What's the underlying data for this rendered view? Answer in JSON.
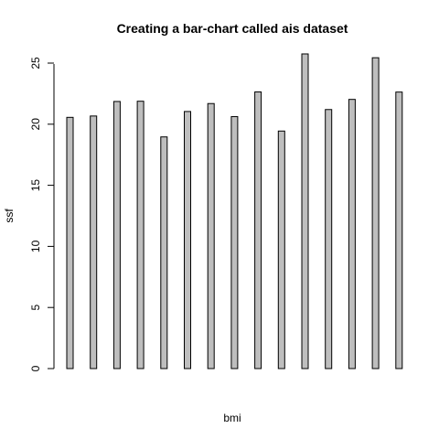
{
  "chart_data": {
    "type": "bar",
    "title": "Creating a bar-chart called ais dataset",
    "xlabel": "bmi",
    "ylabel": "ssf",
    "ylim": [
      0,
      26
    ],
    "yticks": [
      0,
      5,
      10,
      15,
      20,
      25
    ],
    "grid": false,
    "bar_color": "#bebebe",
    "values": [
      20.56,
      20.67,
      21.86,
      21.88,
      18.96,
      21.04,
      21.69,
      20.62,
      22.64,
      19.44,
      25.75,
      21.2,
      22.03,
      25.44,
      22.63
    ]
  }
}
